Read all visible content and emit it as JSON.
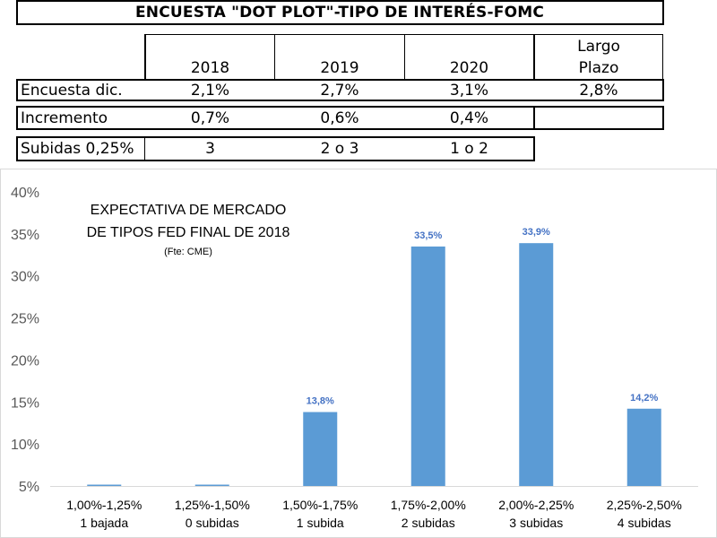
{
  "table": {
    "title": "ENCUESTA \"DOT PLOT\"-TIPO DE INTERÉS-FOMC",
    "headers": [
      "2018",
      "2019",
      "2020"
    ],
    "header_largo_1": "Largo",
    "header_largo_2": "Plazo",
    "rows": [
      {
        "label": "Encuesta dic.",
        "values": [
          "2,1%",
          "2,7%",
          "3,1%",
          "2,8%"
        ]
      },
      {
        "label": "Incremento",
        "values": [
          "0,7%",
          "0,6%",
          "0,4%",
          ""
        ]
      },
      {
        "label": "Subidas 0,25%",
        "values": [
          "3",
          "2 o 3",
          "1 o 2"
        ]
      }
    ]
  },
  "chart_data": {
    "type": "bar",
    "title_line1": "EXPECTATIVA DE MERCADO",
    "title_line2": "DE TIPOS FED FINAL DE 2018",
    "source": "(Fte: CME)",
    "categories": [
      [
        "1,00%-1,25%",
        "1 bajada"
      ],
      [
        "1,25%-1,50%",
        "0 subidas"
      ],
      [
        "1,50%-1,75%",
        "1 subida"
      ],
      [
        "1,75%-2,00%",
        "2 subidas"
      ],
      [
        "2,00%-2,25%",
        "3 subidas"
      ],
      [
        "2,25%-2,50%",
        "4 subidas"
      ]
    ],
    "values": [
      5.0,
      5.0,
      13.8,
      33.5,
      33.9,
      14.2
    ],
    "data_labels": [
      "",
      "",
      "13,8%",
      "33,5%",
      "33,9%",
      "14,2%"
    ],
    "yticks": [
      "5%",
      "10%",
      "15%",
      "20%",
      "25%",
      "30%",
      "35%",
      "40%"
    ],
    "ylim": [
      5,
      40
    ],
    "bar_color": "#5b9bd5",
    "label_color": "#4472c4",
    "grid": false
  }
}
